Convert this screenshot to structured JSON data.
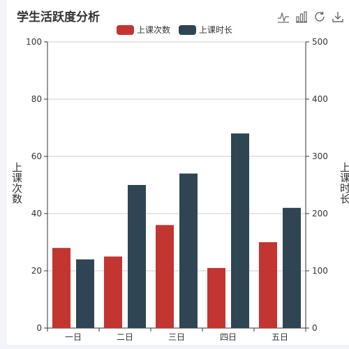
{
  "chart_data": {
    "type": "bar",
    "title": "学生活跃度分析",
    "categories": [
      "一日",
      "二日",
      "三日",
      "四日",
      "五日"
    ],
    "series": [
      {
        "name": "上课次数",
        "axis": "left",
        "color": "#c23531",
        "values": [
          28,
          25,
          36,
          21,
          30
        ]
      },
      {
        "name": "上课时长",
        "axis": "right",
        "color": "#2f4554",
        "values": [
          120,
          250,
          270,
          340,
          210
        ]
      }
    ],
    "y_left": {
      "label": "上课次数",
      "min": 0,
      "max": 100,
      "ticks": [
        0,
        20,
        40,
        60,
        80,
        100
      ]
    },
    "y_right": {
      "label": "上课时长",
      "min": 0,
      "max": 500,
      "ticks": [
        0,
        100,
        200,
        300,
        400,
        500
      ]
    },
    "grid": true,
    "legend_position": "top-center"
  },
  "toolbox": {
    "icons": [
      "line-chart-icon",
      "bar-chart-icon",
      "restore-icon",
      "download-icon"
    ]
  }
}
